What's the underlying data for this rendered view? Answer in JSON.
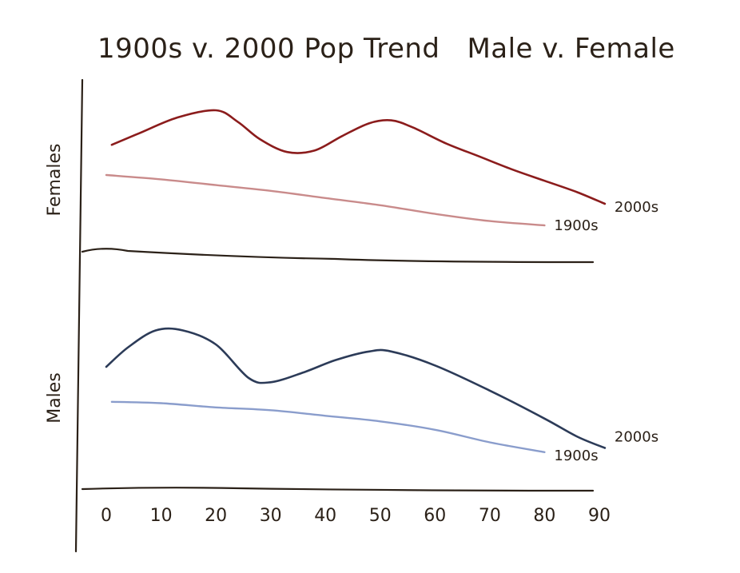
{
  "chart_data": {
    "type": "line",
    "title": "1900s v. 2000 Pop Trend   Male v. Female",
    "xlabel": "",
    "x_ticks": [
      "0",
      "10",
      "20",
      "30",
      "40",
      "50",
      "60",
      "70",
      "80",
      "90"
    ],
    "x_tick_values": [
      0,
      10,
      20,
      30,
      40,
      50,
      60,
      70,
      80,
      90
    ],
    "xlim": [
      0,
      90
    ],
    "grid": false,
    "panels": [
      {
        "ylabel": "Females",
        "ylim": [
          0,
          100
        ],
        "series": [
          {
            "name": "2000s",
            "color": "#8b1c1c",
            "x": [
              1,
              6,
              13,
              20,
              24,
              28,
              33,
              38,
              43,
              48,
              52,
              56,
              62,
              68,
              74,
              80,
              86,
              91
            ],
            "y": [
              66,
              74,
              85,
              90,
              82,
              70,
              61,
              62,
              72,
              81,
              83,
              78,
              67,
              58,
              49,
              41,
              33,
              25
            ]
          },
          {
            "name": "1900s",
            "color": "#c98b8b",
            "x": [
              0,
              10,
              20,
              30,
              40,
              50,
              60,
              70,
              80
            ],
            "y": [
              45,
              42,
              38,
              34,
              29,
              24,
              18,
              13,
              10
            ]
          }
        ]
      },
      {
        "ylabel": "Males",
        "ylim": [
          0,
          100
        ],
        "series": [
          {
            "name": "2000s",
            "color": "#2c3b58",
            "x": [
              0,
              4,
              9,
              14,
              20,
              26,
              30,
              36,
              42,
              48,
              52,
              60,
              70,
              80,
              86,
              91
            ],
            "y": [
              72,
              86,
              98,
              98,
              88,
              64,
              61,
              68,
              77,
              83,
              83,
              73,
              55,
              35,
              22,
              14
            ]
          },
          {
            "name": "1900s",
            "color": "#8a9dcc",
            "x": [
              1,
              10,
              20,
              30,
              40,
              50,
              60,
              70,
              80
            ],
            "y": [
              47,
              46,
              43,
              41,
              37,
              33,
              27,
              18,
              11
            ]
          }
        ]
      }
    ]
  }
}
